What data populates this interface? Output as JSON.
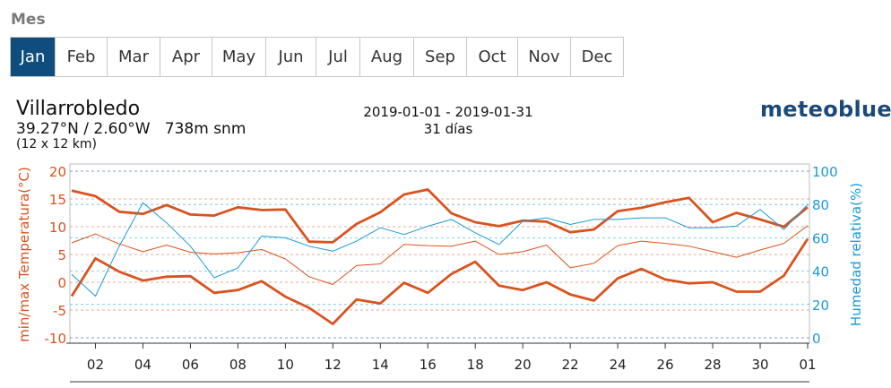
{
  "header": {
    "section_label": "Mes"
  },
  "month_tabs": [
    {
      "label": "Jan",
      "active": true
    },
    {
      "label": "Feb",
      "active": false
    },
    {
      "label": "Mar",
      "active": false
    },
    {
      "label": "Apr",
      "active": false
    },
    {
      "label": "May",
      "active": false
    },
    {
      "label": "Jun",
      "active": false
    },
    {
      "label": "Jul",
      "active": false
    },
    {
      "label": "Aug",
      "active": false
    },
    {
      "label": "Sep",
      "active": false
    },
    {
      "label": "Oct",
      "active": false
    },
    {
      "label": "Nov",
      "active": false
    },
    {
      "label": "Dec",
      "active": false
    }
  ],
  "location": {
    "name": "Villarrobledo",
    "coords": "39.27°N / 2.60°W   738m snm",
    "resolution": "(12 x 12 km)"
  },
  "period": {
    "range": "2019-01-01 - 2019-01-31",
    "days": "31 días"
  },
  "brand": "meteoblue",
  "colors": {
    "temperature": "#d9531e",
    "humidity": "#1b9ad6",
    "active_tab": "#0e4d7e",
    "brand": "#1a4a7a"
  },
  "chart_data": {
    "type": "line",
    "x": [
      "2019-01-01",
      "2019-01-02",
      "2019-01-03",
      "2019-01-04",
      "2019-01-05",
      "2019-01-06",
      "2019-01-07",
      "2019-01-08",
      "2019-01-09",
      "2019-01-10",
      "2019-01-11",
      "2019-01-12",
      "2019-01-13",
      "2019-01-14",
      "2019-01-15",
      "2019-01-16",
      "2019-01-17",
      "2019-01-18",
      "2019-01-19",
      "2019-01-20",
      "2019-01-21",
      "2019-01-22",
      "2019-01-23",
      "2019-01-24",
      "2019-01-25",
      "2019-01-26",
      "2019-01-27",
      "2019-01-28",
      "2019-01-29",
      "2019-01-30",
      "2019-01-31",
      "2019-02-01"
    ],
    "xtick_labels": [
      "02",
      "04",
      "06",
      "08",
      "10",
      "12",
      "14",
      "16",
      "18",
      "20",
      "22",
      "24",
      "26",
      "28",
      "30",
      "01"
    ],
    "xticks": [
      "2019-01-02",
      "2019-01-04",
      "2019-01-06",
      "2019-01-08",
      "2019-01-10",
      "2019-01-12",
      "2019-01-14",
      "2019-01-16",
      "2019-01-18",
      "2019-01-20",
      "2019-01-22",
      "2019-01-24",
      "2019-01-26",
      "2019-01-28",
      "2019-01-30",
      "2019-02-01"
    ],
    "y_left": {
      "label": "min/max Temperatura(°C)",
      "range": [
        -10,
        20
      ],
      "ticks": [
        -10,
        -5,
        0,
        5,
        10,
        15,
        20
      ]
    },
    "y_right": {
      "label": "Humedad relativa(%)",
      "range": [
        0,
        100
      ],
      "ticks": [
        0,
        20,
        40,
        60,
        80,
        100
      ]
    },
    "series": [
      {
        "axis": "left",
        "style": "thick",
        "values": [
          16.5,
          15.5,
          12.7,
          12.3,
          13.9,
          12.2,
          12.0,
          13.5,
          13.0,
          13.1,
          7.3,
          7.2,
          10.5,
          12.6,
          15.8,
          16.7,
          12.4,
          10.8,
          10.1,
          11.1,
          10.9,
          9.0,
          9.5,
          12.8,
          13.4,
          14.4,
          15.2,
          10.8,
          12.5,
          11.3,
          10.0,
          13.5
        ]
      },
      {
        "axis": "left",
        "style": "thick",
        "values": [
          -2.5,
          4.3,
          1.9,
          0.3,
          1.0,
          1.1,
          -1.9,
          -1.4,
          0.2,
          -2.6,
          -4.6,
          -7.5,
          -3.1,
          -3.8,
          -0.1,
          -1.9,
          1.5,
          3.7,
          -0.6,
          -1.4,
          0.0,
          -2.2,
          -3.3,
          0.7,
          2.4,
          0.5,
          -0.2,
          0.0,
          -1.7,
          -1.7,
          1.2,
          7.8
        ]
      },
      {
        "axis": "left",
        "style": "thin",
        "values": [
          7.1,
          8.7,
          6.9,
          5.5,
          6.7,
          5.4,
          5.1,
          5.3,
          5.9,
          4.2,
          1.0,
          -0.4,
          3.0,
          3.3,
          6.8,
          6.6,
          6.5,
          7.4,
          5.0,
          5.5,
          6.7,
          2.6,
          3.4,
          6.6,
          7.4,
          7.0,
          6.5,
          5.5,
          4.5,
          5.8,
          7.0,
          10.2
        ]
      },
      {
        "axis": "right",
        "style": "thin",
        "values": [
          38,
          25,
          55,
          81,
          69,
          55,
          36,
          42,
          61,
          60,
          55,
          52,
          58,
          66,
          62,
          67,
          71,
          63,
          56,
          70,
          72,
          68,
          71,
          71,
          72,
          72,
          66,
          66,
          67,
          77,
          65,
          80
        ]
      }
    ],
    "grid": true
  }
}
